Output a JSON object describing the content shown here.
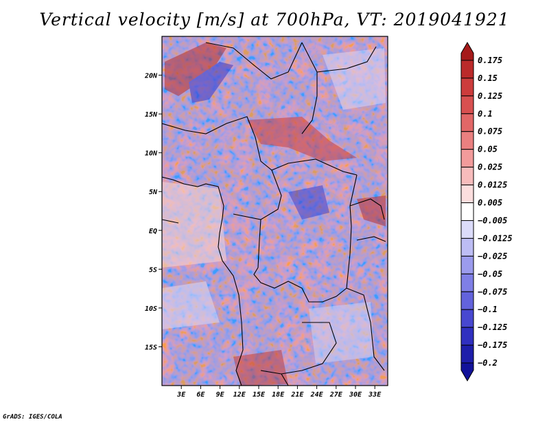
{
  "title": "Vertical velocity [m/s] at 700hPa, VT: 2019041921",
  "footer": "GrADS: IGES/COLA",
  "map": {
    "lon_range": [
      0,
      35
    ],
    "lat_range": [
      -20,
      25
    ],
    "lat_ticks": [
      {
        "value": 20,
        "label": "20N"
      },
      {
        "value": 15,
        "label": "15N"
      },
      {
        "value": 10,
        "label": "10N"
      },
      {
        "value": 5,
        "label": "5N"
      },
      {
        "value": 0,
        "label": "EQ"
      },
      {
        "value": -5,
        "label": "5S"
      },
      {
        "value": -10,
        "label": "10S"
      },
      {
        "value": -15,
        "label": "15S"
      }
    ],
    "lon_ticks": [
      {
        "value": 3,
        "label": "3E"
      },
      {
        "value": 6,
        "label": "6E"
      },
      {
        "value": 9,
        "label": "9E"
      },
      {
        "value": 12,
        "label": "12E"
      },
      {
        "value": 15,
        "label": "15E"
      },
      {
        "value": 18,
        "label": "18E"
      },
      {
        "value": 21,
        "label": "21E"
      },
      {
        "value": 24,
        "label": "24E"
      },
      {
        "value": 27,
        "label": "27E"
      },
      {
        "value": 30,
        "label": "30E"
      },
      {
        "value": 33,
        "label": "33E"
      }
    ]
  },
  "colorbar": {
    "labels": [
      "0.175",
      "0.15",
      "0.125",
      "0.1",
      "0.075",
      "0.05",
      "0.025",
      "0.0125",
      "0.005",
      "−0.005",
      "−0.0125",
      "−0.025",
      "−0.05",
      "−0.075",
      "−0.1",
      "−0.125",
      "−0.175",
      "−0.2"
    ],
    "colors": [
      "#a51a1a",
      "#bb2a2a",
      "#cc3c3c",
      "#d85050",
      "#e26767",
      "#ea8080",
      "#f29b9b",
      "#f7bcbc",
      "#fcdede",
      "#ffffff",
      "#dcdcfa",
      "#bdbdf4",
      "#9b9bed",
      "#7f7fe6",
      "#6363dc",
      "#4848d0",
      "#3030c0",
      "#1e1eaa",
      "#12129a"
    ]
  }
}
